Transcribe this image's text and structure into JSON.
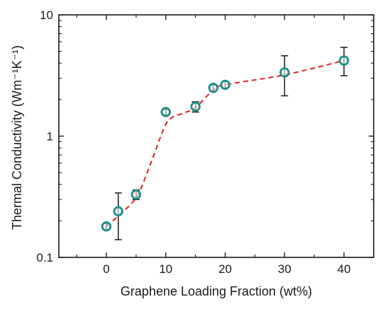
{
  "chart_data": {
    "type": "scatter",
    "title": "",
    "xlabel": "Graphene Loading Fraction (wt%)",
    "ylabel": "Thermal Conductivity",
    "ylabel_unit": "Wm⁻¹K⁻¹",
    "x_scale": "linear",
    "y_scale": "log",
    "xlim": [
      -8,
      45
    ],
    "ylim": [
      0.1,
      10
    ],
    "x_ticks": [
      0,
      10,
      20,
      30,
      40
    ],
    "x_tick_labels": [
      "0",
      "10",
      "20",
      "30",
      "40"
    ],
    "y_ticks": [
      0.1,
      1,
      10
    ],
    "y_tick_labels": [
      "0.1",
      "1",
      "10"
    ],
    "grid": false,
    "legend": "none",
    "series": [
      {
        "marker": "open-circle",
        "color": "#1a8f8a",
        "x": [
          0,
          2,
          5,
          10,
          15,
          18,
          20,
          30,
          40
        ],
        "y": [
          0.18,
          0.24,
          0.33,
          1.58,
          1.75,
          2.5,
          2.65,
          3.35,
          4.2
        ],
        "y_err_low": [
          0.17,
          0.14,
          0.3,
          1.5,
          1.58,
          2.35,
          2.5,
          2.15,
          3.15
        ],
        "y_err_high": [
          0.19,
          0.34,
          0.36,
          1.66,
          1.92,
          2.65,
          2.82,
          4.6,
          5.4
        ],
        "error_bar_color": "#1a1a1a"
      },
      {
        "style": "dashed-trend",
        "color": "#e0211d",
        "x": [
          0,
          2,
          5,
          7,
          9,
          10,
          11,
          13,
          15,
          18,
          20,
          30,
          40
        ],
        "y": [
          0.18,
          0.22,
          0.31,
          0.52,
          0.95,
          1.25,
          1.42,
          1.55,
          1.72,
          2.4,
          2.65,
          3.2,
          4.2
        ]
      }
    ]
  }
}
